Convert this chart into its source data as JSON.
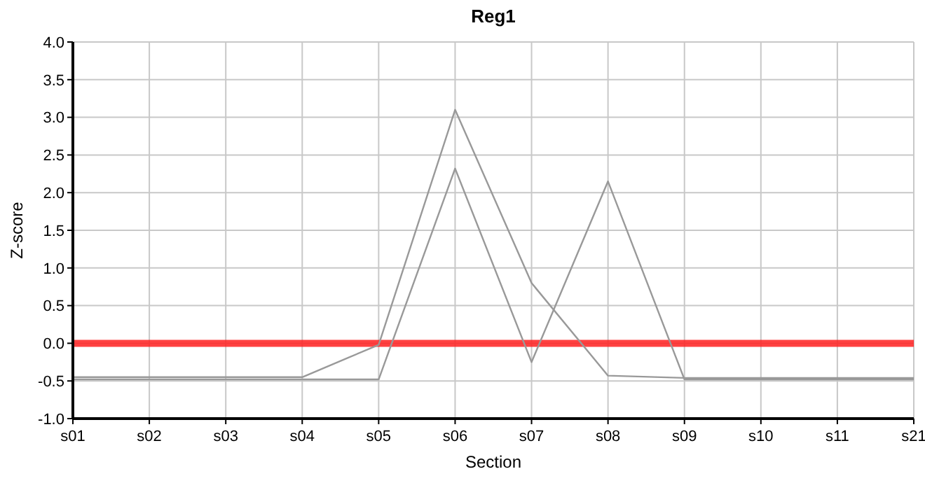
{
  "chart_data": {
    "type": "line",
    "title": "Reg1",
    "xlabel": "Section",
    "ylabel": "Z-score",
    "categories": [
      "s01",
      "s02",
      "s03",
      "s04",
      "s05",
      "s06",
      "s07",
      "s08",
      "s09",
      "s10",
      "s11",
      "s21"
    ],
    "series": [
      {
        "color": "#999999",
        "values": [
          -0.45,
          -0.45,
          -0.45,
          -0.45,
          -0.02,
          3.1,
          0.8,
          -0.43,
          -0.46,
          -0.46,
          -0.46,
          -0.46
        ]
      },
      {
        "color": "#999999",
        "values": [
          -0.48,
          -0.48,
          -0.48,
          -0.48,
          -0.48,
          2.32,
          -0.25,
          2.15,
          -0.48,
          -0.48,
          -0.48,
          -0.48
        ]
      }
    ],
    "ylim": [
      -1,
      4
    ],
    "yticks": [
      {
        "value": -1,
        "label": "-1.0"
      },
      {
        "value": -0.5,
        "label": "-0.5"
      },
      {
        "value": 0,
        "label": "0.0"
      },
      {
        "value": 0.5,
        "label": "0.5"
      },
      {
        "value": 1,
        "label": "1.0"
      },
      {
        "value": 1.5,
        "label": "1.5"
      },
      {
        "value": 2,
        "label": "2.0"
      },
      {
        "value": 2.5,
        "label": "2.5"
      },
      {
        "value": 3,
        "label": "3.0"
      },
      {
        "value": 3.5,
        "label": "3.5"
      },
      {
        "value": 4,
        "label": "4.0"
      }
    ],
    "grid": true,
    "marker": "none",
    "line_style": "solid",
    "ref_lines": [
      {
        "axis": "y",
        "value": 0,
        "color": "#ff2020"
      }
    ]
  }
}
